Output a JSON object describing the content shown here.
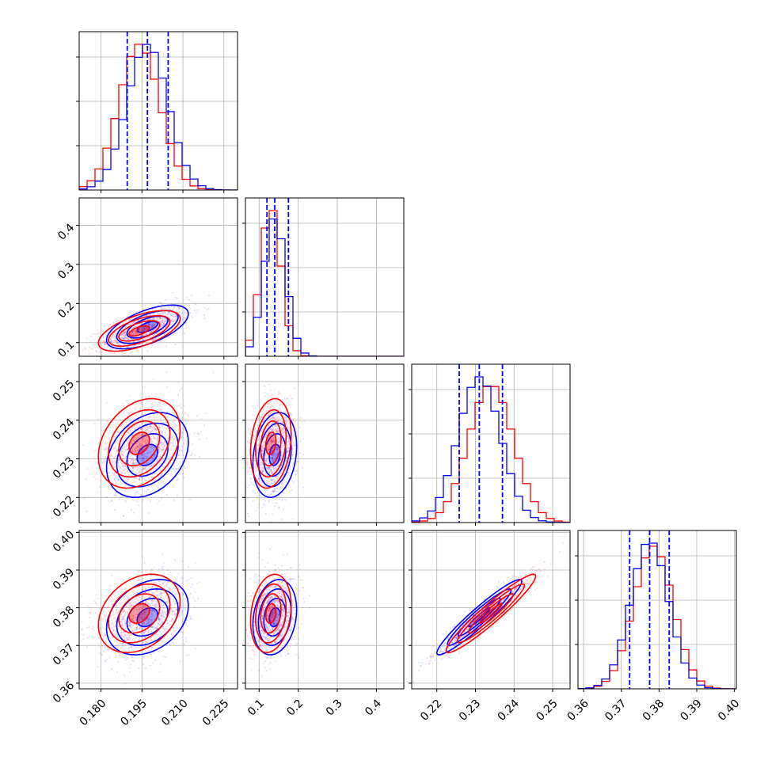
{
  "chart_data": {
    "type": "corner",
    "parameters": 4,
    "series": [
      {
        "name": "",
        "color": "#0000ff",
        "mean": [
          0.197,
          0.14,
          0.231,
          0.3775
        ],
        "sd": [
          0.0075,
          0.028,
          0.0055,
          0.005
        ]
      },
      {
        "name": "",
        "color": "#ff0000",
        "mean": [
          0.194,
          0.13,
          0.234,
          0.3785
        ],
        "sd": [
          0.0075,
          0.026,
          0.0058,
          0.0052
        ]
      }
    ],
    "correlations": {
      "0-1": 0.6,
      "0-2": 0.3,
      "0-3": 0.3,
      "1-2": 0.2,
      "1-3": 0.2,
      "2-3": 0.95
    },
    "quantile_lines": {
      "color": "#0000ff",
      "values": [
        [
          0.1896,
          0.197,
          0.2046
        ],
        [
          0.12,
          0.14,
          0.175
        ],
        [
          0.2258,
          0.231,
          0.237
        ],
        [
          0.3722,
          0.3775,
          0.3827
        ]
      ]
    },
    "axes": [
      {
        "range": [
          0.172,
          0.23
        ],
        "ticks": [
          0.18,
          0.195,
          0.21,
          0.225
        ],
        "tick_labels": [
          "0.180",
          "0.195",
          "0.210",
          "0.225"
        ]
      },
      {
        "range": [
          0.065,
          0.47
        ],
        "ticks": [
          0.1,
          0.2,
          0.3,
          0.4
        ],
        "tick_labels": [
          "0.1",
          "0.2",
          "0.3",
          "0.4"
        ]
      },
      {
        "range": [
          0.2135,
          0.2545
        ],
        "ticks": [
          0.22,
          0.23,
          0.24,
          0.25
        ],
        "tick_labels": [
          "0.22",
          "0.23",
          "0.24",
          "0.25"
        ]
      },
      {
        "range": [
          0.3585,
          0.4005
        ],
        "ticks": [
          0.36,
          0.37,
          0.38,
          0.39,
          0.4
        ],
        "tick_labels": [
          "0.36",
          "0.37",
          "0.38",
          "0.39",
          "0.40"
        ]
      }
    ],
    "hist_yticks": 3,
    "grid": true,
    "legend": "none"
  }
}
